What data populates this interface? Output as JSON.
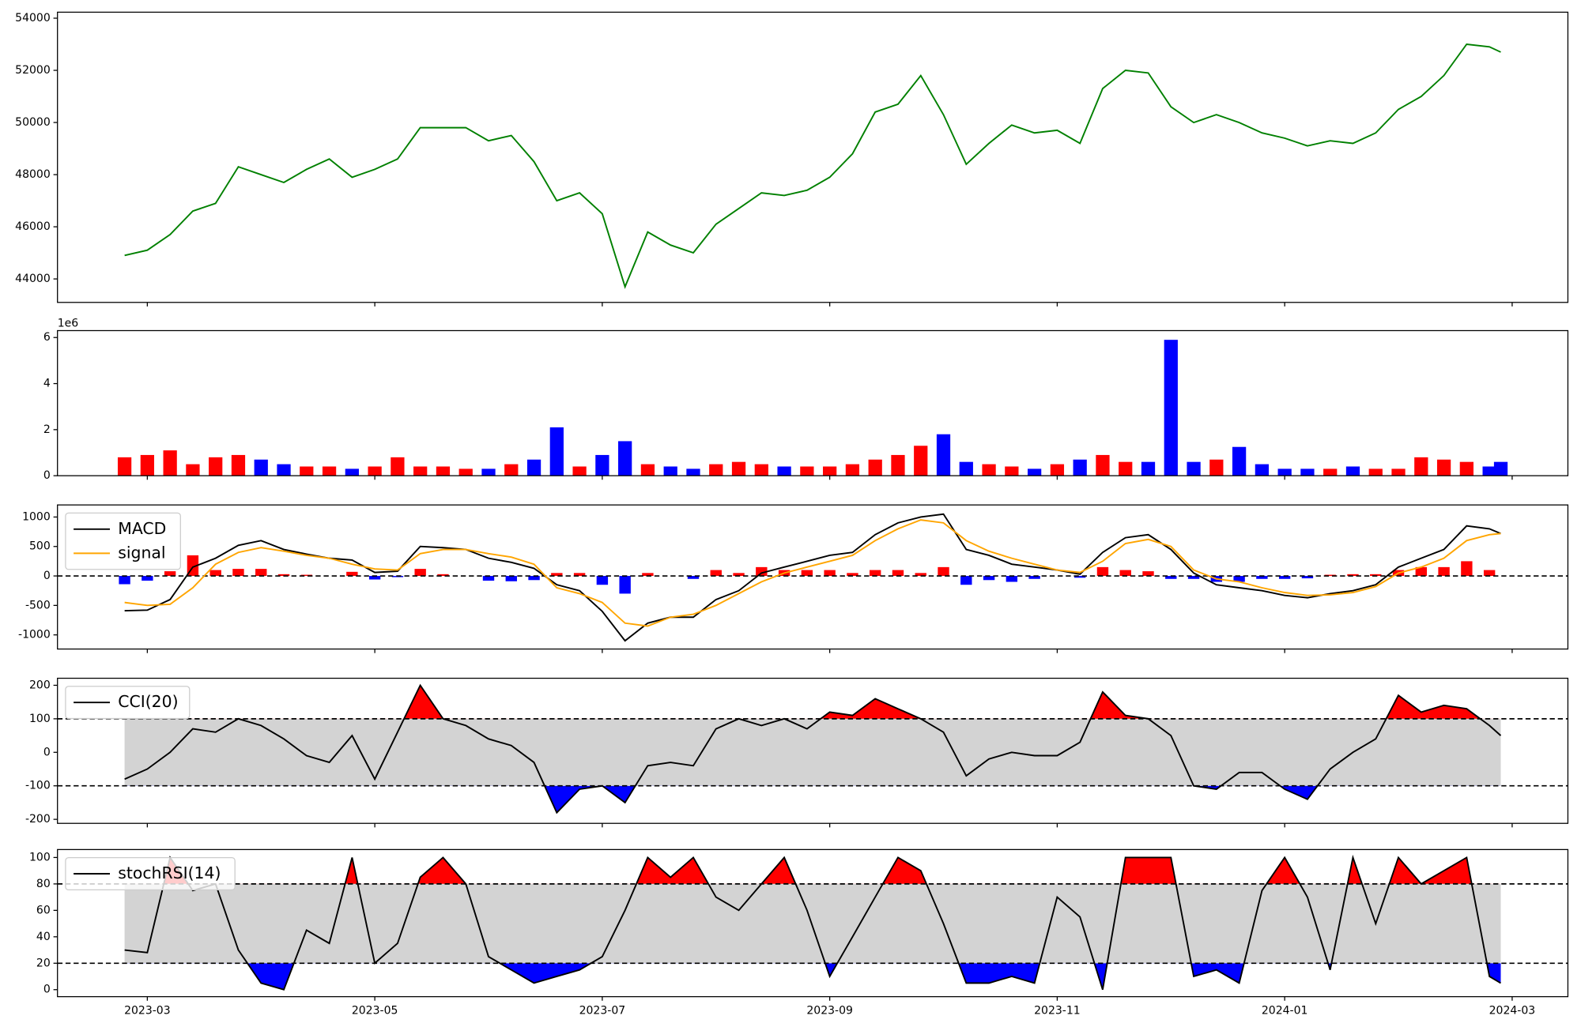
{
  "chart_data": [
    {
      "type": "line",
      "color": "green",
      "values": [
        44900,
        45100,
        45700,
        46600,
        46900,
        48300,
        48000,
        47700,
        48200,
        48600,
        47900,
        48200,
        48600,
        49800,
        49800,
        49800,
        49300,
        49500,
        48500,
        47000,
        47300,
        46500,
        43700,
        45800,
        45300,
        45000,
        46100,
        46700,
        47300,
        47200,
        47400,
        47900,
        48800,
        50400,
        50700,
        51800,
        50300,
        48400,
        49200,
        49900,
        49600,
        49700,
        49200,
        51300,
        52000,
        51900,
        50600,
        50000,
        50300,
        50000,
        49600,
        49400,
        49100,
        49300,
        49200,
        49600,
        50500,
        51000,
        51800,
        53000,
        52900,
        52700
      ],
      "ylim": [
        43100,
        54230
      ],
      "yticks": [
        44000,
        46000,
        48000,
        50000,
        52000,
        54000
      ]
    },
    {
      "type": "bar",
      "offset_label": "1e6",
      "up_color": "red",
      "down_color": "blue",
      "values": [
        0.8,
        0.9,
        1.1,
        0.5,
        0.8,
        0.9,
        0.7,
        0.5,
        0.4,
        0.4,
        0.3,
        0.4,
        0.8,
        0.4,
        0.4,
        0.3,
        0.3,
        0.5,
        0.7,
        2.1,
        0.4,
        0.9,
        1.5,
        0.5,
        0.4,
        0.3,
        0.5,
        0.6,
        0.5,
        0.4,
        0.4,
        0.4,
        0.5,
        0.7,
        0.9,
        1.3,
        1.8,
        0.6,
        0.5,
        0.4,
        0.3,
        0.5,
        0.7,
        0.9,
        0.6,
        0.6,
        5.9,
        0.6,
        0.7,
        1.25,
        0.5,
        0.3,
        0.3,
        0.3,
        0.4,
        0.3,
        0.3,
        0.8,
        0.7,
        0.6,
        0.4,
        0.6
      ],
      "ylim": [
        0,
        6.3
      ],
      "yticks": [
        0,
        2,
        4,
        6
      ]
    },
    {
      "type": "macd",
      "legend": "upper left",
      "reference_lines": [
        0
      ],
      "hist_up_color": "red",
      "hist_down_color": "blue",
      "series": [
        {
          "name": "MACD",
          "color": "black",
          "values": [
            -590,
            -580,
            -400,
            150,
            300,
            520,
            600,
            450,
            370,
            300,
            270,
            60,
            80,
            500,
            480,
            450,
            300,
            230,
            130,
            -150,
            -250,
            -600,
            -1100,
            -800,
            -700,
            -700,
            -400,
            -250,
            50,
            150,
            250,
            350,
            400,
            700,
            900,
            1000,
            1050,
            450,
            350,
            200,
            150,
            100,
            30,
            400,
            650,
            700,
            450,
            50,
            -150,
            -200,
            -250,
            -330,
            -370,
            -300,
            -250,
            -150,
            150,
            300,
            450,
            850,
            800,
            720
          ]
        },
        {
          "name": "signal",
          "color": "orange",
          "values": [
            -450,
            -500,
            -480,
            -200,
            200,
            400,
            480,
            420,
            350,
            300,
            200,
            120,
            100,
            380,
            450,
            450,
            380,
            320,
            200,
            -200,
            -300,
            -450,
            -800,
            -850,
            -700,
            -650,
            -500,
            -300,
            -100,
            50,
            150,
            250,
            350,
            600,
            800,
            950,
            900,
            600,
            420,
            300,
            200,
            100,
            60,
            250,
            550,
            620,
            500,
            100,
            -50,
            -100,
            -200,
            -280,
            -330,
            -320,
            -280,
            -180,
            50,
            150,
            300,
            600,
            700,
            720
          ]
        }
      ],
      "histogram": [
        -140,
        -80,
        80,
        350,
        100,
        120,
        120,
        30,
        20,
        0,
        70,
        -60,
        -20,
        120,
        30,
        0,
        -80,
        -90,
        -70,
        50,
        50,
        -150,
        -300,
        50,
        0,
        -50,
        100,
        50,
        150,
        100,
        100,
        100,
        50,
        100,
        100,
        50,
        150,
        -150,
        -70,
        -100,
        -50,
        0,
        -30,
        150,
        100,
        80,
        -50,
        -50,
        -100,
        -100,
        -50,
        -50,
        -40,
        20,
        30,
        30,
        100,
        150,
        150,
        250,
        100,
        0
      ],
      "ylim": [
        -1240,
        1205
      ],
      "yticks": [
        -1000,
        -500,
        0,
        500,
        1000
      ]
    },
    {
      "type": "band",
      "legend": "upper left",
      "bands": [
        -100,
        100
      ],
      "above_color": "red",
      "band_color": "lightgray",
      "below_color": "blue",
      "series": [
        {
          "name": "CCI(20)",
          "color": "black",
          "values": [
            -80,
            -50,
            0,
            70,
            60,
            100,
            80,
            40,
            -10,
            -30,
            50,
            -80,
            60,
            200,
            100,
            80,
            40,
            20,
            -30,
            -180,
            -110,
            -100,
            -150,
            -40,
            -30,
            -40,
            70,
            100,
            80,
            100,
            70,
            120,
            110,
            160,
            130,
            100,
            60,
            -70,
            -20,
            0,
            -10,
            -10,
            30,
            180,
            110,
            100,
            50,
            -100,
            -110,
            -60,
            -60,
            -110,
            -140,
            -50,
            0,
            40,
            170,
            120,
            140,
            130,
            80,
            50
          ]
        }
      ],
      "ylim": [
        -212,
        221
      ],
      "yticks": [
        -200,
        -100,
        0,
        100,
        200
      ]
    },
    {
      "type": "band",
      "legend": "upper left",
      "bands": [
        20,
        80
      ],
      "above_color": "red",
      "band_color": "lightgray",
      "below_color": "blue",
      "series": [
        {
          "name": "stochRSI(14)",
          "color": "black",
          "values": [
            30,
            28,
            100,
            75,
            80,
            30,
            5,
            0,
            45,
            35,
            100,
            20,
            35,
            85,
            100,
            80,
            25,
            15,
            5,
            10,
            15,
            25,
            60,
            100,
            85,
            100,
            70,
            60,
            80,
            100,
            60,
            10,
            40,
            70,
            100,
            90,
            50,
            5,
            5,
            10,
            5,
            70,
            55,
            0,
            100,
            100,
            100,
            10,
            15,
            5,
            75,
            100,
            70,
            15,
            100,
            50,
            100,
            80,
            90,
            100,
            10,
            5
          ]
        }
      ],
      "ylim": [
        -5.3,
        106
      ],
      "yticks": [
        0,
        20,
        40,
        60,
        80,
        100
      ],
      "x": [
        2.8,
        3.0,
        3.2,
        3.4,
        3.6,
        3.8,
        4.0,
        4.2,
        4.4,
        4.6,
        4.8,
        5.0,
        5.2,
        5.4,
        5.6,
        5.8,
        6.0,
        6.2,
        6.4,
        6.6,
        6.8,
        7.0,
        7.2,
        7.4,
        7.6,
        7.8,
        8.0,
        8.2,
        8.4,
        8.6,
        8.8,
        9.0,
        9.2,
        9.4,
        9.6,
        9.8,
        10.0,
        10.2,
        10.4,
        10.6,
        10.8,
        11.0,
        11.2,
        11.4,
        11.6,
        11.8,
        12.0,
        12.2,
        12.4,
        12.6,
        12.8,
        13.0,
        13.2,
        13.4,
        13.6,
        13.8,
        14.0,
        14.2,
        14.4,
        14.6,
        14.8,
        14.9
      ],
      "xlim": [
        2.21,
        15.49
      ],
      "xticks": [
        {
          "value": 3,
          "label": "2023-03"
        },
        {
          "value": 5,
          "label": "2023-05"
        },
        {
          "value": 7,
          "label": "2023-07"
        },
        {
          "value": 9,
          "label": "2023-09"
        },
        {
          "value": 11,
          "label": "2023-11"
        },
        {
          "value": 13,
          "label": "2024-01"
        },
        {
          "value": 15,
          "label": "2024-03"
        }
      ]
    }
  ]
}
